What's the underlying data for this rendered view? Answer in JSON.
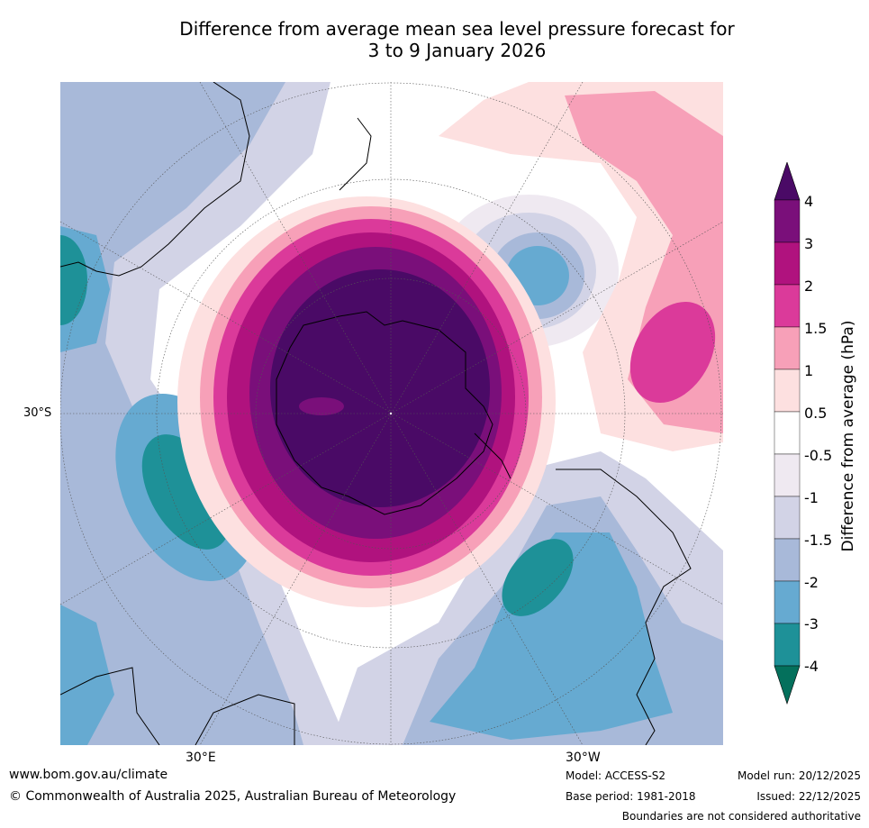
{
  "title": {
    "line1": "Difference from average mean sea level pressure forecast for",
    "line2": "3 to 9 January 2026"
  },
  "axis_labels": {
    "lat_30s": "30°S",
    "lon_30e": "30°E",
    "lon_30w": "30°W"
  },
  "colorbar": {
    "title": "Difference from average (hPa)",
    "ticks": [
      "4",
      "3",
      "2",
      "1.5",
      "1",
      "0.5",
      "-0.5",
      "-1",
      "-1.5",
      "-2",
      "-3",
      "-4"
    ],
    "colors": [
      "#4a0a66",
      "#7a0f7a",
      "#b0127e",
      "#db3a9a",
      "#f7a0b8",
      "#fde0e0",
      "#ffffff",
      "#efe9f1",
      "#d2d3e6",
      "#a8b9d9",
      "#66aad1",
      "#1e9198",
      "#04705c"
    ]
  },
  "footer": {
    "website": "www.bom.gov.au/climate",
    "copyright": "© Commonwealth of Australia 2025, Australian Bureau of Meteorology",
    "model": "Model: ACCESS-S2",
    "base_period": "Base period: 1981-2018",
    "model_run": "Model run: 20/12/2025",
    "issued": "Issued: 22/12/2025",
    "disclaimer": "Boundaries are not considered authoritative"
  }
}
